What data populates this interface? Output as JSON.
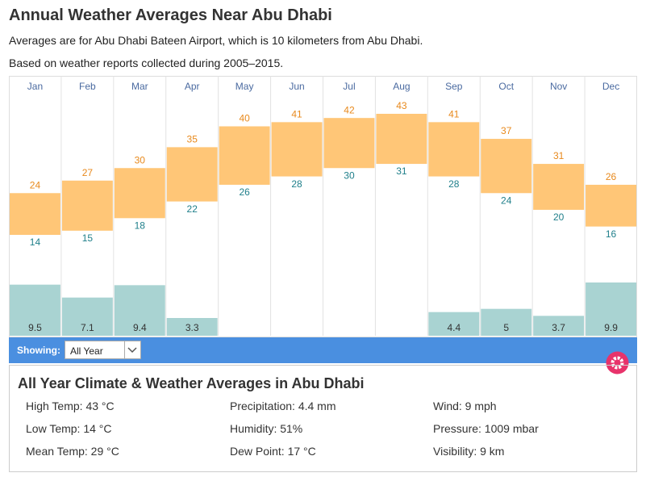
{
  "header": {
    "title": "Annual Weather Averages Near Abu Dhabi",
    "subtitle": "Averages are for Abu Dhabi Bateen Airport, which is 10 kilometers from Abu Dhabi.",
    "note": "Based on weather reports collected during 2005–2015."
  },
  "chart_data": {
    "type": "temperature-range",
    "categories": [
      "Jan",
      "Feb",
      "Mar",
      "Apr",
      "May",
      "Jun",
      "Jul",
      "Aug",
      "Sep",
      "Oct",
      "Nov",
      "Dec"
    ],
    "high": {
      "color": "#ffc677",
      "label_color": "#e8891c",
      "values": [
        24,
        27,
        30,
        35,
        40,
        41,
        42,
        43,
        41,
        37,
        31,
        26
      ]
    },
    "low": {
      "label_color": "#1f7f8a",
      "values": [
        14,
        15,
        18,
        22,
        26,
        28,
        30,
        31,
        28,
        24,
        20,
        16
      ]
    },
    "precipitation": {
      "color": "#a9d3d2",
      "values": [
        9.5,
        7.1,
        9.4,
        3.3,
        null,
        null,
        null,
        null,
        4.4,
        5,
        3.7,
        9.9
      ]
    }
  },
  "toolbar": {
    "label": "Showing:",
    "selected": "All Year"
  },
  "summary": {
    "title": "All Year Climate & Weather Averages in Abu Dhabi",
    "stats": [
      [
        "High Temp: 43 °C",
        "Precipitation: 4.4 mm",
        "Wind: 9 mph"
      ],
      [
        "Low Temp: 14 °C",
        "Humidity: 51%",
        "Pressure: 1009 mbar"
      ],
      [
        "Mean Temp: 29 °C",
        "Dew Point: 17 °C",
        "Visibility: 9 km"
      ]
    ]
  }
}
